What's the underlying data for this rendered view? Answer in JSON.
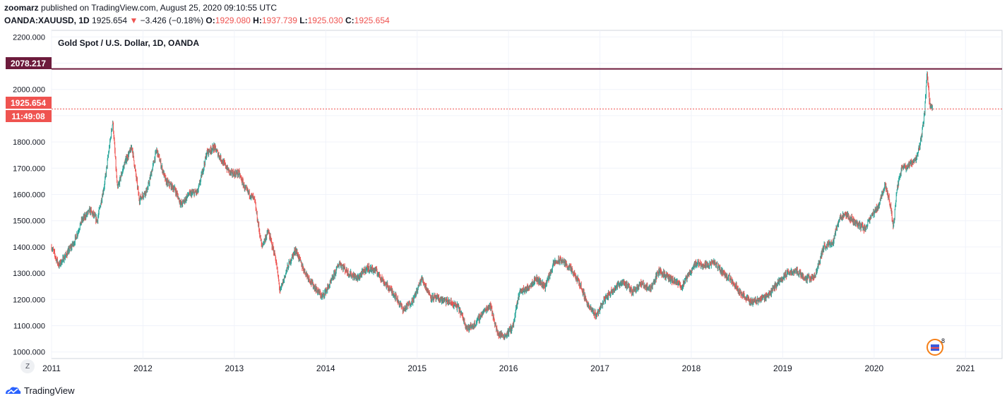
{
  "header": {
    "author": "zoomarz",
    "published_text": "published on TradingView.com, August 25, 2020 09:10:55 UTC",
    "symbol": "OANDA:XAUUSD, 1D",
    "last": "1925.654",
    "change": "−3.426 (−0.18%)",
    "o_label": "O:",
    "o_value": "1929.080",
    "h_label": "H:",
    "h_value": "1937.739",
    "l_label": "L:",
    "l_value": "1925.030",
    "c_label": "C:",
    "c_value": "1925.654"
  },
  "colors": {
    "up": "#26a69a",
    "down": "#ef5350",
    "resistance": "#6d1b3c",
    "price_tag": "#ef5350"
  },
  "chart_data": {
    "type": "candlestick",
    "title": "Gold Spot / U.S. Dollar, 1D, OANDA",
    "ylim": [
      975,
      2225
    ],
    "y_ticks": [
      "2200.000",
      "2100.000",
      "2000.000",
      "1900.000",
      "1800.000",
      "1700.000",
      "1600.000",
      "1500.000",
      "1400.000",
      "1300.000",
      "1200.000",
      "1100.000",
      "1000.000"
    ],
    "x_ticks": [
      "2011",
      "2012",
      "2013",
      "2014",
      "2015",
      "2016",
      "2017",
      "2018",
      "2019",
      "2020",
      "2021"
    ],
    "xlim": [
      2011.0,
      2021.4
    ],
    "price_path": [
      [
        2011.0,
        1400
      ],
      [
        2011.08,
        1330
      ],
      [
        2011.16,
        1370
      ],
      [
        2011.25,
        1420
      ],
      [
        2011.33,
        1500
      ],
      [
        2011.42,
        1540
      ],
      [
        2011.5,
        1500
      ],
      [
        2011.58,
        1640
      ],
      [
        2011.67,
        1880
      ],
      [
        2011.72,
        1620
      ],
      [
        2011.8,
        1720
      ],
      [
        2011.88,
        1780
      ],
      [
        2011.96,
        1580
      ],
      [
        2012.05,
        1620
      ],
      [
        2012.15,
        1770
      ],
      [
        2012.25,
        1650
      ],
      [
        2012.35,
        1620
      ],
      [
        2012.42,
        1560
      ],
      [
        2012.5,
        1600
      ],
      [
        2012.6,
        1610
      ],
      [
        2012.7,
        1760
      ],
      [
        2012.78,
        1780
      ],
      [
        2012.88,
        1720
      ],
      [
        2012.96,
        1680
      ],
      [
        2013.05,
        1680
      ],
      [
        2013.12,
        1620
      ],
      [
        2013.22,
        1580
      ],
      [
        2013.3,
        1400
      ],
      [
        2013.37,
        1460
      ],
      [
        2013.45,
        1360
      ],
      [
        2013.5,
        1230
      ],
      [
        2013.58,
        1320
      ],
      [
        2013.67,
        1390
      ],
      [
        2013.75,
        1320
      ],
      [
        2013.85,
        1260
      ],
      [
        2013.96,
        1210
      ],
      [
        2014.05,
        1260
      ],
      [
        2014.15,
        1340
      ],
      [
        2014.25,
        1300
      ],
      [
        2014.35,
        1280
      ],
      [
        2014.45,
        1320
      ],
      [
        2014.55,
        1310
      ],
      [
        2014.65,
        1260
      ],
      [
        2014.75,
        1220
      ],
      [
        2014.85,
        1160
      ],
      [
        2014.96,
        1200
      ],
      [
        2015.05,
        1280
      ],
      [
        2015.15,
        1210
      ],
      [
        2015.25,
        1200
      ],
      [
        2015.35,
        1190
      ],
      [
        2015.45,
        1170
      ],
      [
        2015.55,
        1090
      ],
      [
        2015.62,
        1100
      ],
      [
        2015.72,
        1150
      ],
      [
        2015.8,
        1180
      ],
      [
        2015.88,
        1070
      ],
      [
        2015.96,
        1060
      ],
      [
        2016.05,
        1100
      ],
      [
        2016.12,
        1230
      ],
      [
        2016.2,
        1240
      ],
      [
        2016.3,
        1280
      ],
      [
        2016.4,
        1250
      ],
      [
        2016.5,
        1340
      ],
      [
        2016.58,
        1350
      ],
      [
        2016.67,
        1320
      ],
      [
        2016.78,
        1260
      ],
      [
        2016.88,
        1170
      ],
      [
        2016.96,
        1140
      ],
      [
        2017.05,
        1200
      ],
      [
        2017.15,
        1240
      ],
      [
        2017.25,
        1270
      ],
      [
        2017.35,
        1230
      ],
      [
        2017.45,
        1260
      ],
      [
        2017.55,
        1240
      ],
      [
        2017.65,
        1310
      ],
      [
        2017.72,
        1290
      ],
      [
        2017.8,
        1270
      ],
      [
        2017.9,
        1250
      ],
      [
        2017.98,
        1300
      ],
      [
        2018.05,
        1340
      ],
      [
        2018.15,
        1330
      ],
      [
        2018.25,
        1340
      ],
      [
        2018.35,
        1300
      ],
      [
        2018.45,
        1270
      ],
      [
        2018.55,
        1220
      ],
      [
        2018.65,
        1190
      ],
      [
        2018.75,
        1200
      ],
      [
        2018.85,
        1220
      ],
      [
        2018.96,
        1270
      ],
      [
        2019.05,
        1300
      ],
      [
        2019.15,
        1310
      ],
      [
        2019.25,
        1280
      ],
      [
        2019.35,
        1285
      ],
      [
        2019.45,
        1400
      ],
      [
        2019.55,
        1420
      ],
      [
        2019.62,
        1510
      ],
      [
        2019.7,
        1520
      ],
      [
        2019.8,
        1490
      ],
      [
        2019.9,
        1470
      ],
      [
        2019.98,
        1520
      ],
      [
        2020.05,
        1560
      ],
      [
        2020.12,
        1640
      ],
      [
        2020.18,
        1560
      ],
      [
        2020.21,
        1470
      ],
      [
        2020.25,
        1620
      ],
      [
        2020.3,
        1700
      ],
      [
        2020.38,
        1710
      ],
      [
        2020.45,
        1730
      ],
      [
        2020.5,
        1780
      ],
      [
        2020.55,
        1900
      ],
      [
        2020.58,
        2060
      ],
      [
        2020.61,
        1940
      ],
      [
        2020.64,
        1925.654
      ]
    ],
    "horizontal_line": {
      "label": "2078.217",
      "value": 2078.217
    },
    "last_price": {
      "label": "1925.654",
      "value": 1925.654,
      "countdown": "11:49:08"
    }
  },
  "ui": {
    "z_label": "Z",
    "badge_count": "8",
    "tradingview_brand": "TradingView"
  }
}
